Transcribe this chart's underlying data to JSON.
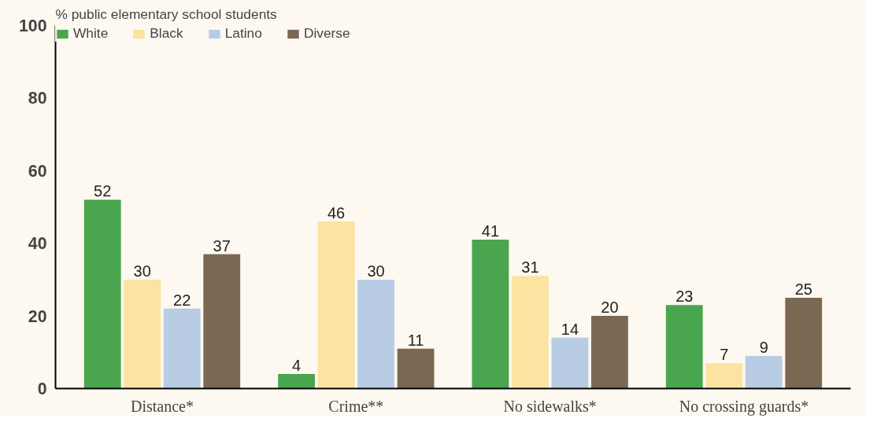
{
  "chart_data": {
    "type": "bar",
    "ylabel": "% public elementary school students",
    "categories": [
      "Distance*",
      "Crime**",
      "No sidewalks*",
      "No crossing guards*"
    ],
    "series": [
      {
        "name": "White",
        "color": "#4aa54f",
        "values": [
          52,
          4,
          41,
          23
        ]
      },
      {
        "name": "Black",
        "color": "#fbe3a1",
        "values": [
          30,
          46,
          31,
          7
        ]
      },
      {
        "name": "Latino",
        "color": "#b8cce4",
        "values": [
          22,
          30,
          14,
          9
        ]
      },
      {
        "name": "Diverse",
        "color": "#7b6852",
        "values": [
          37,
          11,
          20,
          25
        ]
      }
    ],
    "ylim": [
      0,
      100
    ],
    "yticks": [
      0,
      20,
      40,
      60,
      80,
      100
    ],
    "grid": false,
    "legend": "top left",
    "data_labels": true
  }
}
